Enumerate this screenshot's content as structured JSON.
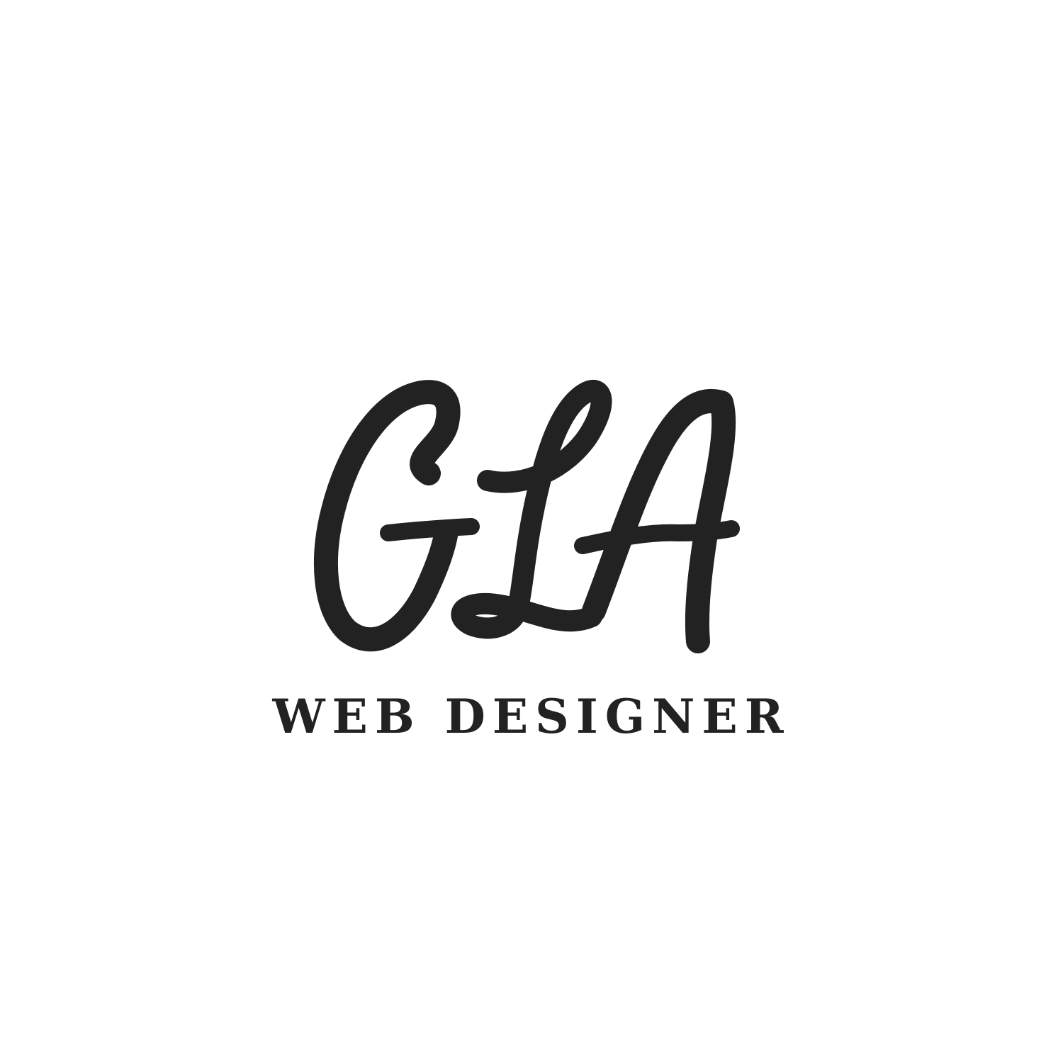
{
  "logo": {
    "monogram": "GLA",
    "tagline": "WEB DESIGNER",
    "ink_color": "#222222",
    "background_color": "#ffffff"
  }
}
